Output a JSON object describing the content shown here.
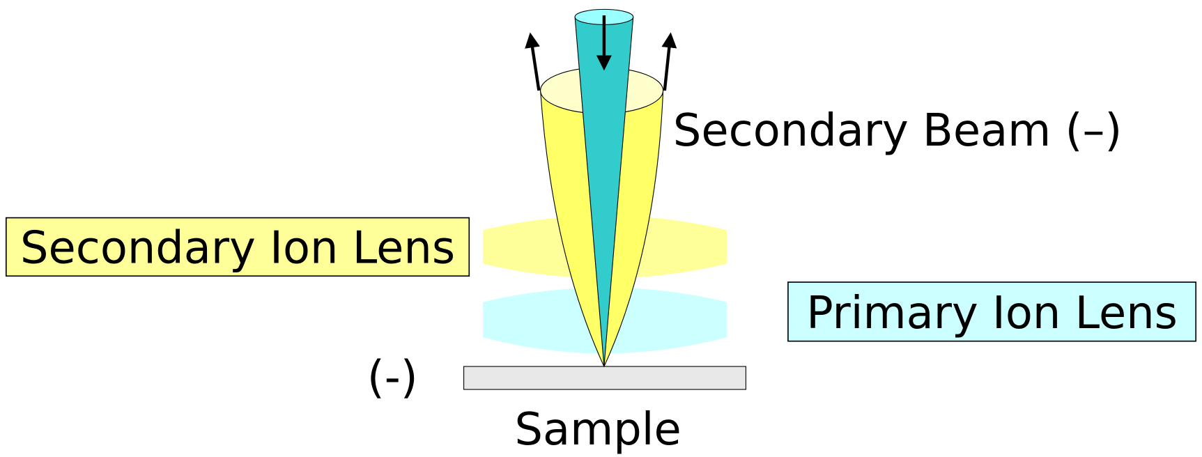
{
  "labels": {
    "secondary_beam": "Secondary Beam (–)",
    "secondary_ion_lens": "Secondary Ion Lens",
    "primary_ion_lens": "Primary Ion Lens",
    "sample_charge": "(-)",
    "sample": "Sample"
  }
}
